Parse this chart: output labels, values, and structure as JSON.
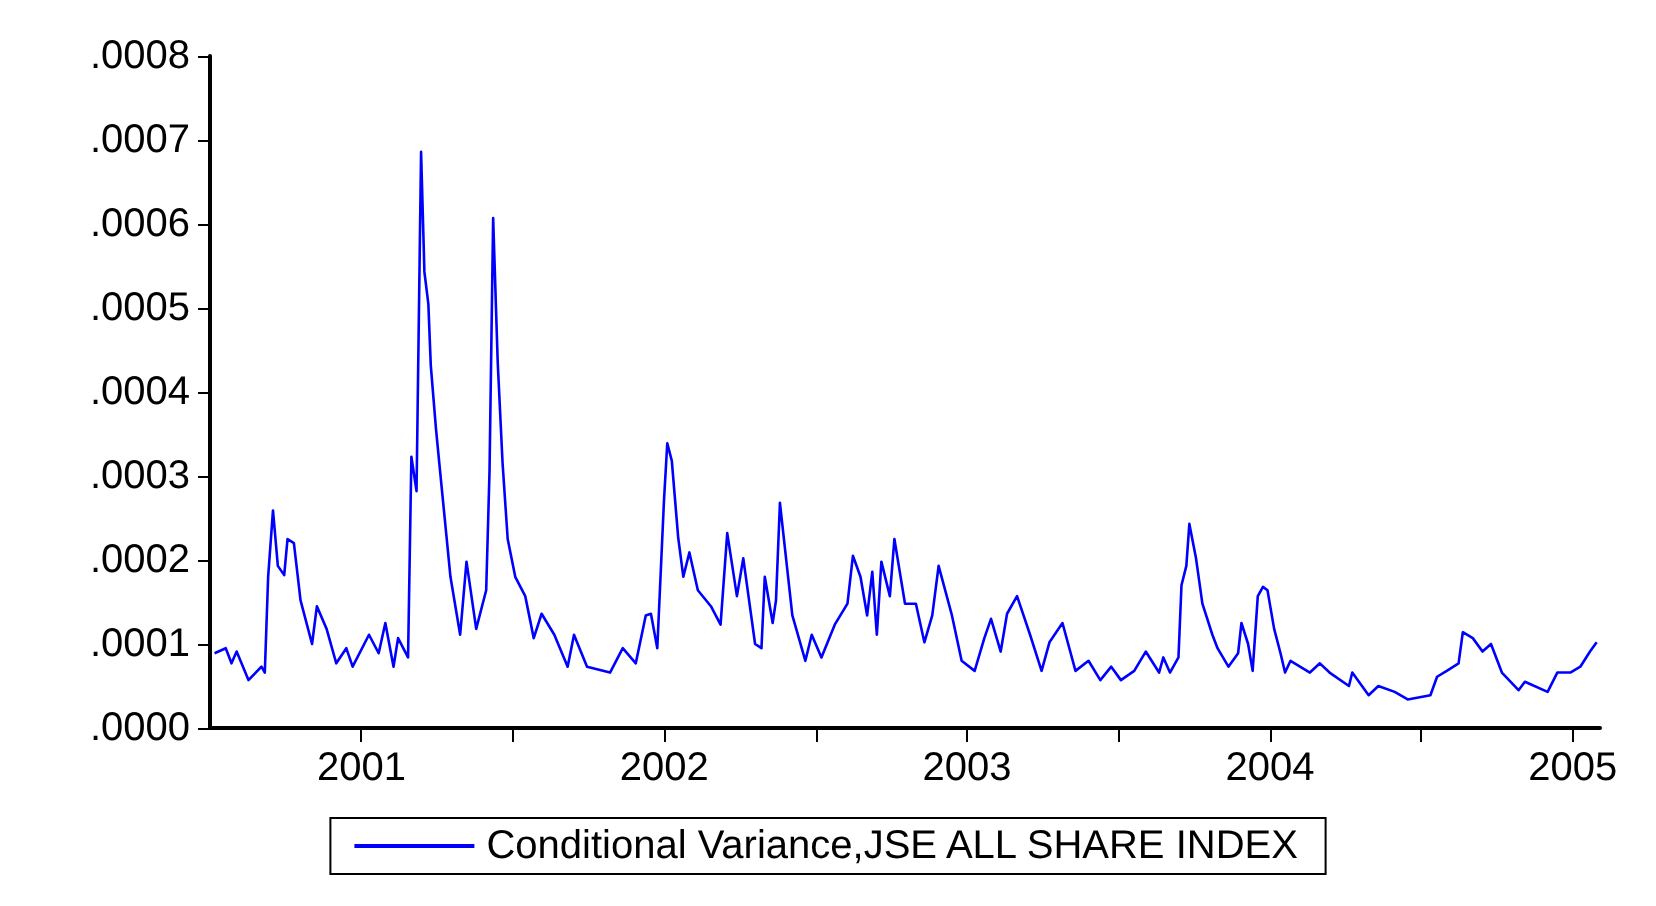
{
  "chart_data": {
    "type": "line",
    "xlim": [
      2001,
      2005.59
    ],
    "ylim": [
      0,
      0.0008
    ],
    "xticks": [
      {
        "value": 2001.5,
        "label": "2001"
      },
      {
        "value": 2002,
        "label": null
      },
      {
        "value": 2002.5,
        "label": "2002"
      },
      {
        "value": 2003,
        "label": null
      },
      {
        "value": 2003.5,
        "label": "2003"
      },
      {
        "value": 2004,
        "label": null
      },
      {
        "value": 2004.5,
        "label": "2004"
      },
      {
        "value": 2005,
        "label": null
      },
      {
        "value": 2005.5,
        "label": "2005"
      }
    ],
    "yticks": [
      {
        "value": 0,
        "label": ".0000"
      },
      {
        "value": 0.0001,
        "label": ".0001"
      },
      {
        "value": 0.0002,
        "label": ".0002"
      },
      {
        "value": 0.0003,
        "label": ".0003"
      },
      {
        "value": 0.0004,
        "label": ".0004"
      },
      {
        "value": 0.0005,
        "label": ".0005"
      },
      {
        "value": 0.0006,
        "label": ".0006"
      },
      {
        "value": 0.0007,
        "label": ".0007"
      },
      {
        "value": 0.0008,
        "label": ".0008"
      }
    ],
    "grid": false,
    "legend": "bottom",
    "marker": "none",
    "line_style": "solid",
    "series": [
      {
        "name": "Conditional Variance,JSE ALL SHARE INDEX",
        "color": "#0000ff",
        "x": [
          2001.015,
          2001.052,
          2001.071,
          2001.088,
          2001.127,
          2001.17,
          2001.181,
          2001.192,
          2001.208,
          2001.224,
          2001.245,
          2001.256,
          2001.277,
          2001.299,
          2001.337,
          2001.353,
          2001.385,
          2001.417,
          2001.45,
          2001.471,
          2001.525,
          2001.557,
          2001.579,
          2001.606,
          2001.621,
          2001.654,
          2001.665,
          2001.682,
          2001.697,
          2001.708,
          2001.721,
          2001.729,
          2001.746,
          2001.757,
          2001.772,
          2001.794,
          2001.826,
          2001.847,
          2001.879,
          2001.912,
          2001.923,
          2001.935,
          2001.95,
          2001.966,
          2001.983,
          2002.008,
          2002.041,
          2002.069,
          2002.095,
          2002.137,
          2002.181,
          2002.202,
          2002.245,
          2002.321,
          2002.363,
          2002.406,
          2002.439,
          2002.456,
          2002.477,
          2002.499,
          2002.51,
          2002.525,
          2002.546,
          2002.563,
          2002.583,
          2002.611,
          2002.654,
          2002.686,
          2002.708,
          2002.74,
          2002.761,
          2002.8,
          2002.821,
          2002.832,
          2002.858,
          2002.869,
          2002.882,
          2002.923,
          2002.966,
          2002.987,
          2003.019,
          2003.063,
          2003.105,
          2003.123,
          2003.148,
          2003.17,
          2003.187,
          2003.202,
          2003.217,
          2003.245,
          2003.26,
          2003.295,
          2003.331,
          2003.359,
          2003.385,
          2003.406,
          2003.45,
          2003.482,
          2003.525,
          2003.557,
          2003.579,
          2003.611,
          2003.632,
          2003.665,
          2003.708,
          2003.746,
          2003.772,
          2003.815,
          2003.858,
          2003.901,
          2003.94,
          2003.976,
          2004.008,
          2004.052,
          2004.09,
          2004.134,
          2004.148,
          2004.17,
          2004.198,
          2004.208,
          2004.224,
          2004.234,
          2004.256,
          2004.277,
          2004.31,
          2004.327,
          2004.363,
          2004.395,
          2004.406,
          2004.428,
          2004.443,
          2004.46,
          2004.477,
          2004.492,
          2004.514,
          2004.535,
          2004.55,
          2004.568,
          2004.632,
          2004.665,
          2004.697,
          2004.761,
          2004.772,
          2004.826,
          2004.858,
          2004.912,
          2004.955,
          2005.03,
          2005.052,
          2005.084,
          2005.123,
          2005.137,
          2005.17,
          2005.202,
          2005.23,
          2005.266,
          2005.321,
          2005.342,
          2005.417,
          2005.449,
          2005.492,
          2005.525,
          2005.557,
          2005.579
        ],
        "values": [
          8.9e-05,
          9.5e-05,
          7.7e-05,
          9.1e-05,
          5.7e-05,
          7.3e-05,
          6.6e-05,
          0.00018,
          0.000259,
          0.000193,
          0.000182,
          0.000225,
          0.00022,
          0.000152,
          0.0001,
          0.000145,
          0.000118,
          7.7e-05,
          9.5e-05,
          7.3e-05,
          0.000111,
          8.9e-05,
          0.000125,
          7.3e-05,
          0.000107,
          8.4e-05,
          0.000323,
          0.000282,
          0.000686,
          0.000543,
          0.000505,
          0.000432,
          0.000357,
          0.000316,
          0.000261,
          0.00018,
          0.000111,
          0.000198,
          0.000118,
          0.000164,
          0.000305,
          0.000607,
          0.000436,
          0.000316,
          0.000225,
          0.00018,
          0.000157,
          0.000107,
          0.000136,
          0.000111,
          7.3e-05,
          0.000111,
          7.3e-05,
          6.6e-05,
          9.5e-05,
          7.7e-05,
          0.000134,
          0.000136,
          9.5e-05,
          0.00027,
          0.000339,
          0.000318,
          0.000227,
          0.00018,
          0.000209,
          0.000164,
          0.000145,
          0.000123,
          0.000232,
          0.000157,
          0.000202,
          0.0001,
          9.5e-05,
          0.00018,
          0.000125,
          0.000152,
          0.000268,
          0.000134,
          8e-05,
          0.000111,
          8.4e-05,
          0.000123,
          0.000148,
          0.000205,
          0.00018,
          0.000134,
          0.000186,
          0.000111,
          0.000198,
          0.000157,
          0.000225,
          0.000148,
          0.000148,
          0.000102,
          0.000134,
          0.000193,
          0.000134,
          8e-05,
          6.8e-05,
          0.000107,
          0.00013,
          9.1e-05,
          0.000136,
          0.000157,
          0.000111,
          6.8e-05,
          0.000102,
          0.000125,
          6.8e-05,
          8e-05,
          5.7e-05,
          7.3e-05,
          5.7e-05,
          6.8e-05,
          9.1e-05,
          6.6e-05,
          8.4e-05,
          6.6e-05,
          8.4e-05,
          0.00017,
          0.000193,
          0.000243,
          0.000202,
          0.000148,
          0.000111,
          9.5e-05,
          7.3e-05,
          8.9e-05,
          0.000125,
          0.0001,
          6.8e-05,
          0.000157,
          0.000168,
          0.000164,
          0.000118,
          8.9e-05,
          6.6e-05,
          8e-05,
          6.6e-05,
          7.7e-05,
          6.6e-05,
          5e-05,
          6.6e-05,
          3.9e-05,
          5e-05,
          4.3e-05,
          3.4e-05,
          3.9e-05,
          6.1e-05,
          6.8e-05,
          7.7e-05,
          0.000114,
          0.000107,
          9.1e-05,
          0.0001,
          6.6e-05,
          4.5e-05,
          5.5e-05,
          4.3e-05,
          6.6e-05,
          6.6e-05,
          7.3e-05,
          9.1e-05,
          0.000102
        ]
      }
    ]
  }
}
